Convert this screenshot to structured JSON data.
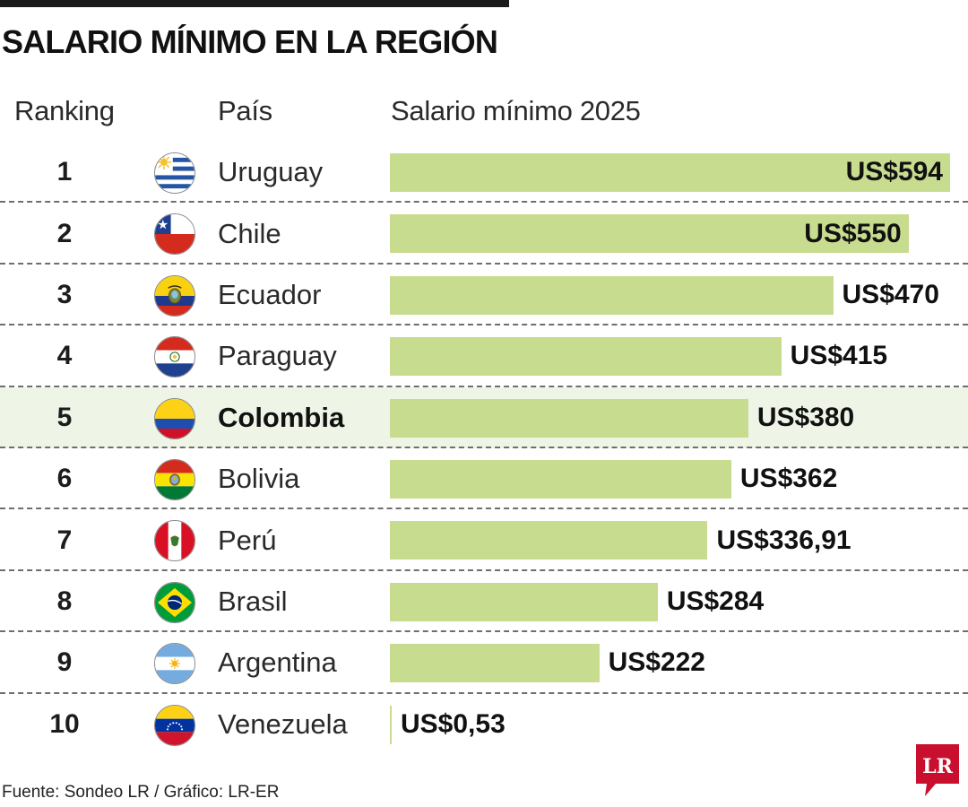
{
  "title": "SALARIO MÍNIMO EN LA REGIÓN",
  "headers": {
    "ranking": "Ranking",
    "country": "País",
    "salary": "Salario mínimo 2025"
  },
  "source": "Fuente: Sondeo LR / Gráfico: LR-ER",
  "logo": {
    "text": "LR",
    "color": "#c8102e"
  },
  "colors": {
    "bar": "#c8dc8f",
    "highlight_row": "#eff5e6"
  },
  "chart_data": {
    "type": "bar",
    "orientation": "horizontal",
    "title": "SALARIO MÍNIMO EN LA REGIÓN",
    "value_axis_label": "Salario mínimo 2025",
    "xlim": [
      0,
      594
    ],
    "grid": false,
    "legend": "none",
    "highlight": "Colombia",
    "rows": [
      {
        "rank": "1",
        "country": "Uruguay",
        "flag": "uruguay-flag-icon",
        "value": 594,
        "label": "US$594"
      },
      {
        "rank": "2",
        "country": "Chile",
        "flag": "chile-flag-icon",
        "value": 550,
        "label": "US$550"
      },
      {
        "rank": "3",
        "country": "Ecuador",
        "flag": "ecuador-flag-icon",
        "value": 470,
        "label": "US$470"
      },
      {
        "rank": "4",
        "country": "Paraguay",
        "flag": "paraguay-flag-icon",
        "value": 415,
        "label": "US$415"
      },
      {
        "rank": "5",
        "country": "Colombia",
        "flag": "colombia-flag-icon",
        "value": 380,
        "label": "US$380"
      },
      {
        "rank": "6",
        "country": "Bolivia",
        "flag": "bolivia-flag-icon",
        "value": 362,
        "label": "US$362"
      },
      {
        "rank": "7",
        "country": "Perú",
        "flag": "peru-flag-icon",
        "value": 336.91,
        "label": "US$336,91"
      },
      {
        "rank": "8",
        "country": "Brasil",
        "flag": "brazil-flag-icon",
        "value": 284,
        "label": "US$284"
      },
      {
        "rank": "9",
        "country": "Argentina",
        "flag": "argentina-flag-icon",
        "value": 222,
        "label": "US$222"
      },
      {
        "rank": "10",
        "country": "Venezuela",
        "flag": "venezuela-flag-icon",
        "value": 0.53,
        "label": "US$0,53"
      }
    ]
  }
}
